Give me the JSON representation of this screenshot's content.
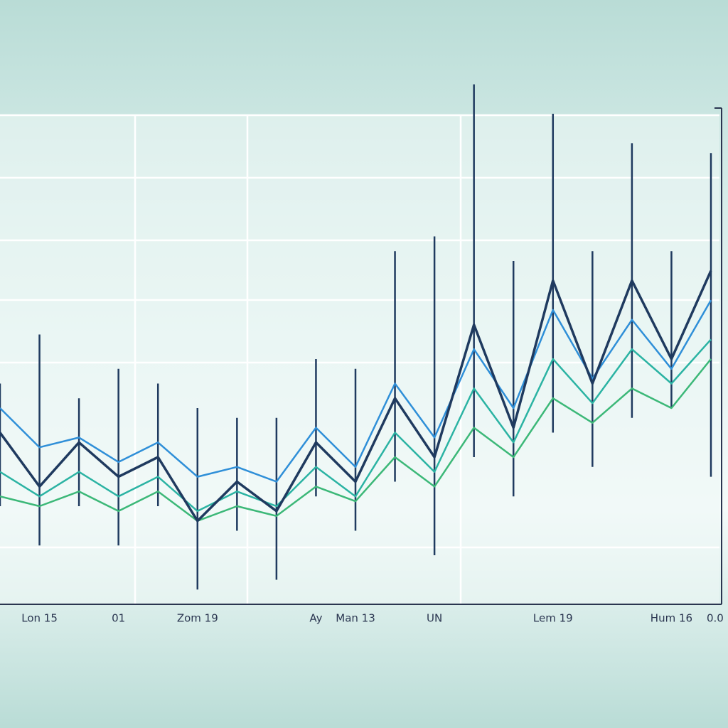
{
  "chart_data": {
    "type": "line",
    "categories": [
      null,
      "Lon 15",
      null,
      "01",
      null,
      "Zom 19",
      null,
      null,
      "Ay",
      "Man 13",
      null,
      "UN",
      null,
      null,
      "Lem 19",
      null,
      null,
      "Hum 16",
      "0.0"
    ],
    "ylim": [
      0,
      100
    ],
    "grid": true,
    "series": [
      {
        "color": "#3cb878",
        "values": [
          22,
          20,
          23,
          19,
          23,
          17,
          20,
          18,
          24,
          21,
          30,
          24,
          36,
          30,
          42,
          37,
          44,
          40,
          50
        ]
      },
      {
        "color": "#2bb3a3",
        "values": [
          27,
          22,
          27,
          22,
          26,
          19,
          23,
          20,
          28,
          22,
          35,
          27,
          44,
          33,
          50,
          41,
          52,
          45,
          54
        ]
      },
      {
        "color": "#2f8fd8",
        "values": [
          40,
          32,
          34,
          29,
          33,
          26,
          28,
          25,
          36,
          28,
          45,
          34,
          52,
          40,
          60,
          46,
          58,
          48,
          62
        ]
      },
      {
        "color": "#1f3a5f",
        "values": [
          35,
          24,
          33,
          26,
          30,
          17,
          25,
          19,
          33,
          25,
          42,
          30,
          57,
          36,
          66,
          45,
          66,
          50,
          68
        ]
      }
    ],
    "highs": [
      45,
      55,
      42,
      48,
      45,
      40,
      38,
      38,
      50,
      48,
      72,
      75,
      106,
      70,
      100,
      72,
      94,
      72,
      92
    ],
    "lows": [
      20,
      12,
      20,
      12,
      20,
      3,
      15,
      5,
      22,
      15,
      25,
      10,
      30,
      22,
      35,
      28,
      38,
      40,
      26
    ],
    "spike_color": "#1f3a5f"
  }
}
